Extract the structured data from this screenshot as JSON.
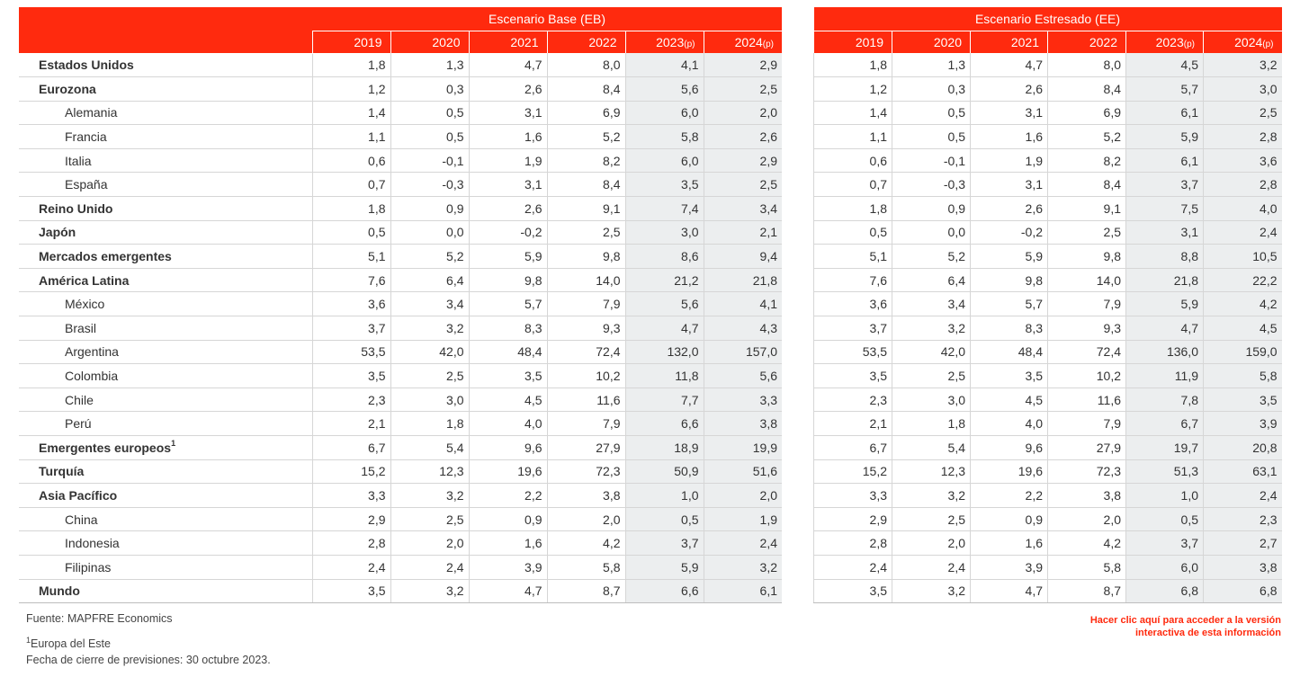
{
  "scenarios": {
    "base": {
      "title": "Escenario Base (EB)"
    },
    "stress": {
      "title": "Escenario Estresado (EE)"
    }
  },
  "years": [
    {
      "year": "2019",
      "suffix": ""
    },
    {
      "year": "2020",
      "suffix": ""
    },
    {
      "year": "2021",
      "suffix": ""
    },
    {
      "year": "2022",
      "suffix": ""
    },
    {
      "year": "2023",
      "suffix": "(p)"
    },
    {
      "year": "2024",
      "suffix": "(p)"
    }
  ],
  "rows": [
    {
      "label": "Estados Unidos",
      "bold": true,
      "sup": "",
      "base": [
        "1,8",
        "1,3",
        "4,7",
        "8,0",
        "4,1",
        "2,9"
      ],
      "stress": [
        "1,8",
        "1,3",
        "4,7",
        "8,0",
        "4,5",
        "3,2"
      ]
    },
    {
      "label": "Eurozona",
      "bold": true,
      "sup": "",
      "base": [
        "1,2",
        "0,3",
        "2,6",
        "8,4",
        "5,6",
        "2,5"
      ],
      "stress": [
        "1,2",
        "0,3",
        "2,6",
        "8,4",
        "5,7",
        "3,0"
      ]
    },
    {
      "label": "Alemania",
      "bold": false,
      "sup": "",
      "base": [
        "1,4",
        "0,5",
        "3,1",
        "6,9",
        "6,0",
        "2,0"
      ],
      "stress": [
        "1,4",
        "0,5",
        "3,1",
        "6,9",
        "6,1",
        "2,5"
      ]
    },
    {
      "label": "Francia",
      "bold": false,
      "sup": "",
      "base": [
        "1,1",
        "0,5",
        "1,6",
        "5,2",
        "5,8",
        "2,6"
      ],
      "stress": [
        "1,1",
        "0,5",
        "1,6",
        "5,2",
        "5,9",
        "2,8"
      ]
    },
    {
      "label": "Italia",
      "bold": false,
      "sup": "",
      "base": [
        "0,6",
        "-0,1",
        "1,9",
        "8,2",
        "6,0",
        "2,9"
      ],
      "stress": [
        "0,6",
        "-0,1",
        "1,9",
        "8,2",
        "6,1",
        "3,6"
      ]
    },
    {
      "label": "España",
      "bold": false,
      "sup": "",
      "base": [
        "0,7",
        "-0,3",
        "3,1",
        "8,4",
        "3,5",
        "2,5"
      ],
      "stress": [
        "0,7",
        "-0,3",
        "3,1",
        "8,4",
        "3,7",
        "2,8"
      ]
    },
    {
      "label": "Reino Unido",
      "bold": true,
      "sup": "",
      "base": [
        "1,8",
        "0,9",
        "2,6",
        "9,1",
        "7,4",
        "3,4"
      ],
      "stress": [
        "1,8",
        "0,9",
        "2,6",
        "9,1",
        "7,5",
        "4,0"
      ]
    },
    {
      "label": "Japón",
      "bold": true,
      "sup": "",
      "base": [
        "0,5",
        "0,0",
        "-0,2",
        "2,5",
        "3,0",
        "2,1"
      ],
      "stress": [
        "0,5",
        "0,0",
        "-0,2",
        "2,5",
        "3,1",
        "2,4"
      ]
    },
    {
      "label": "Mercados emergentes",
      "bold": true,
      "sup": "",
      "base": [
        "5,1",
        "5,2",
        "5,9",
        "9,8",
        "8,6",
        "9,4"
      ],
      "stress": [
        "5,1",
        "5,2",
        "5,9",
        "9,8",
        "8,8",
        "10,5"
      ]
    },
    {
      "label": "América Latina",
      "bold": true,
      "sup": "",
      "base": [
        "7,6",
        "6,4",
        "9,8",
        "14,0",
        "21,2",
        "21,8"
      ],
      "stress": [
        "7,6",
        "6,4",
        "9,8",
        "14,0",
        "21,8",
        "22,2"
      ]
    },
    {
      "label": "México",
      "bold": false,
      "sup": "",
      "base": [
        "3,6",
        "3,4",
        "5,7",
        "7,9",
        "5,6",
        "4,1"
      ],
      "stress": [
        "3,6",
        "3,4",
        "5,7",
        "7,9",
        "5,9",
        "4,2"
      ]
    },
    {
      "label": "Brasil",
      "bold": false,
      "sup": "",
      "base": [
        "3,7",
        "3,2",
        "8,3",
        "9,3",
        "4,7",
        "4,3"
      ],
      "stress": [
        "3,7",
        "3,2",
        "8,3",
        "9,3",
        "4,7",
        "4,5"
      ]
    },
    {
      "label": "Argentina",
      "bold": false,
      "sup": "",
      "base": [
        "53,5",
        "42,0",
        "48,4",
        "72,4",
        "132,0",
        "157,0"
      ],
      "stress": [
        "53,5",
        "42,0",
        "48,4",
        "72,4",
        "136,0",
        "159,0"
      ]
    },
    {
      "label": "Colombia",
      "bold": false,
      "sup": "",
      "base": [
        "3,5",
        "2,5",
        "3,5",
        "10,2",
        "11,8",
        "5,6"
      ],
      "stress": [
        "3,5",
        "2,5",
        "3,5",
        "10,2",
        "11,9",
        "5,8"
      ]
    },
    {
      "label": "Chile",
      "bold": false,
      "sup": "",
      "base": [
        "2,3",
        "3,0",
        "4,5",
        "11,6",
        "7,7",
        "3,3"
      ],
      "stress": [
        "2,3",
        "3,0",
        "4,5",
        "11,6",
        "7,8",
        "3,5"
      ]
    },
    {
      "label": "Perú",
      "bold": false,
      "sup": "",
      "base": [
        "2,1",
        "1,8",
        "4,0",
        "7,9",
        "6,6",
        "3,8"
      ],
      "stress": [
        "2,1",
        "1,8",
        "4,0",
        "7,9",
        "6,7",
        "3,9"
      ]
    },
    {
      "label": "Emergentes europeos",
      "bold": true,
      "sup": "1",
      "base": [
        "6,7",
        "5,4",
        "9,6",
        "27,9",
        "18,9",
        "19,9"
      ],
      "stress": [
        "6,7",
        "5,4",
        "9,6",
        "27,9",
        "19,7",
        "20,8"
      ]
    },
    {
      "label": "Turquía",
      "bold": true,
      "sup": "",
      "base": [
        "15,2",
        "12,3",
        "19,6",
        "72,3",
        "50,9",
        "51,6"
      ],
      "stress": [
        "15,2",
        "12,3",
        "19,6",
        "72,3",
        "51,3",
        "63,1"
      ]
    },
    {
      "label": "Asia Pacífico",
      "bold": true,
      "sup": "",
      "base": [
        "3,3",
        "3,2",
        "2,2",
        "3,8",
        "1,0",
        "2,0"
      ],
      "stress": [
        "3,3",
        "3,2",
        "2,2",
        "3,8",
        "1,0",
        "2,4"
      ]
    },
    {
      "label": "China",
      "bold": false,
      "sup": "",
      "base": [
        "2,9",
        "2,5",
        "0,9",
        "2,0",
        "0,5",
        "1,9"
      ],
      "stress": [
        "2,9",
        "2,5",
        "0,9",
        "2,0",
        "0,5",
        "2,3"
      ]
    },
    {
      "label": "Indonesia",
      "bold": false,
      "sup": "",
      "base": [
        "2,8",
        "2,0",
        "1,6",
        "4,2",
        "3,7",
        "2,4"
      ],
      "stress": [
        "2,8",
        "2,0",
        "1,6",
        "4,2",
        "3,7",
        "2,7"
      ]
    },
    {
      "label": "Filipinas",
      "bold": false,
      "sup": "",
      "base": [
        "2,4",
        "2,4",
        "3,9",
        "5,8",
        "5,9",
        "3,2"
      ],
      "stress": [
        "2,4",
        "2,4",
        "3,9",
        "5,8",
        "6,0",
        "3,8"
      ]
    },
    {
      "label": "Mundo",
      "bold": true,
      "sup": "",
      "base": [
        "3,5",
        "3,2",
        "4,7",
        "8,7",
        "6,6",
        "6,1"
      ],
      "stress": [
        "3,5",
        "3,2",
        "4,7",
        "8,7",
        "6,8",
        "6,8"
      ]
    }
  ],
  "footer": {
    "source": "Fuente: MAPFRE Economics",
    "note_marker": "1",
    "note": "Europa del Este",
    "closing_date": "Fecha de cierre de previsiones: 30 octubre 2023.",
    "link_line1": "Hacer clic aquí para acceder a la versión",
    "link_line2": "interactiva de esta información"
  },
  "colors": {
    "accent": "#ff2a0e",
    "projection_bg": "#eceeef",
    "rule": "#d6d6d6"
  }
}
